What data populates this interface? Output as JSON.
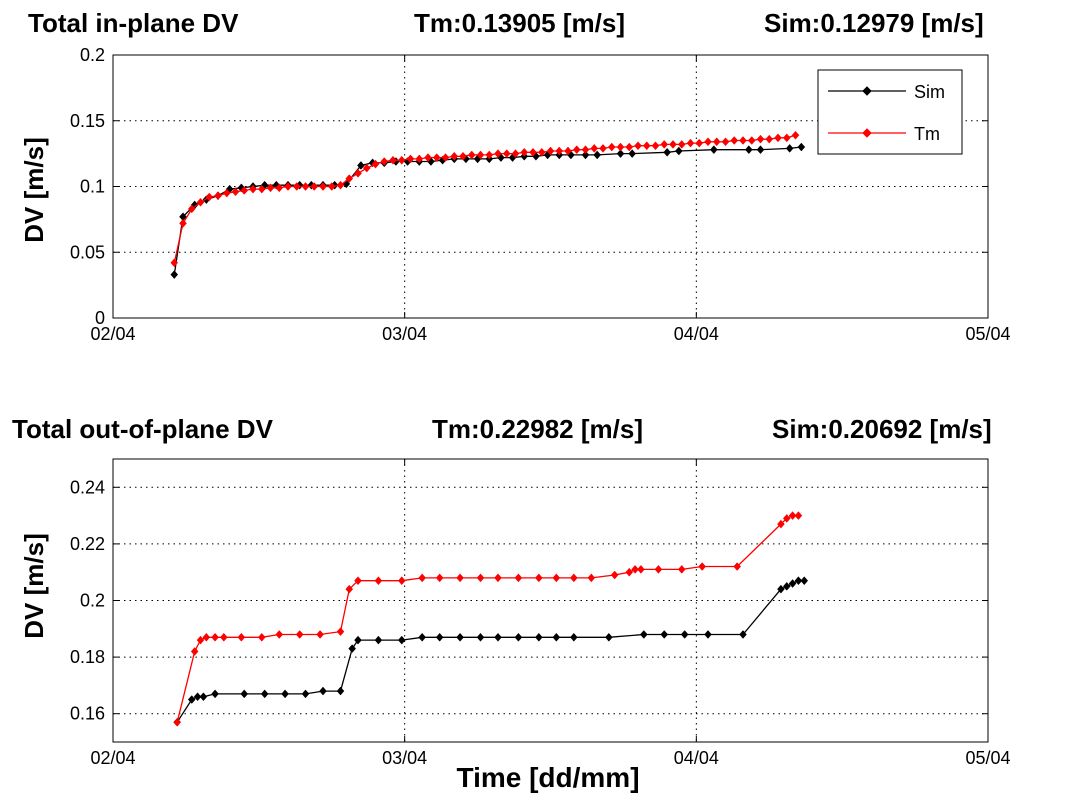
{
  "colors": {
    "sim": "#000000",
    "tm": "#ff0000",
    "background": "#ffffff",
    "grid": "#000000"
  },
  "chart_data": [
    {
      "type": "line",
      "title_parts": [
        "Total in-plane DV",
        "Tm:0.13905 [m/s]",
        "Sim:0.12979 [m/s]"
      ],
      "xlabel": "",
      "ylabel": "DV [m/s]",
      "xlim": [
        2.0,
        5.0
      ],
      "ylim": [
        0,
        0.2
      ],
      "xticks": [
        2,
        3,
        4,
        5
      ],
      "xtick_labels": [
        "02/04",
        "03/04",
        "04/04",
        "05/04"
      ],
      "yticks": [
        0,
        0.05,
        0.1,
        0.15,
        0.2
      ],
      "ytick_labels": [
        "0",
        "0.05",
        "0.1",
        "0.15",
        "0.2"
      ],
      "grid": true,
      "legend": {
        "position": "top-right",
        "entries": [
          "Sim",
          "Tm"
        ]
      },
      "series": [
        {
          "name": "Sim",
          "color": "#000000",
          "x": [
            2.21,
            2.24,
            2.28,
            2.32,
            2.36,
            2.4,
            2.44,
            2.48,
            2.52,
            2.56,
            2.6,
            2.64,
            2.68,
            2.72,
            2.76,
            2.8,
            2.85,
            2.89,
            2.93,
            2.97,
            3.01,
            3.05,
            3.09,
            3.13,
            3.17,
            3.21,
            3.25,
            3.29,
            3.33,
            3.37,
            3.41,
            3.45,
            3.49,
            3.53,
            3.57,
            3.62,
            3.66,
            3.74,
            3.78,
            3.9,
            3.94,
            4.06,
            4.18,
            4.22,
            4.32,
            4.36
          ],
          "y": [
            0.033,
            0.077,
            0.086,
            0.09,
            0.093,
            0.098,
            0.099,
            0.1,
            0.101,
            0.101,
            0.101,
            0.101,
            0.101,
            0.101,
            0.101,
            0.102,
            0.116,
            0.118,
            0.118,
            0.119,
            0.119,
            0.119,
            0.119,
            0.12,
            0.121,
            0.121,
            0.121,
            0.121,
            0.122,
            0.122,
            0.123,
            0.123,
            0.124,
            0.124,
            0.124,
            0.124,
            0.124,
            0.125,
            0.125,
            0.126,
            0.127,
            0.128,
            0.128,
            0.128,
            0.129,
            0.13
          ]
        },
        {
          "name": "Tm",
          "color": "#ff0000",
          "x": [
            2.21,
            2.24,
            2.27,
            2.3,
            2.33,
            2.36,
            2.39,
            2.42,
            2.45,
            2.48,
            2.51,
            2.54,
            2.57,
            2.6,
            2.63,
            2.66,
            2.69,
            2.72,
            2.75,
            2.78,
            2.81,
            2.84,
            2.87,
            2.9,
            2.93,
            2.96,
            2.99,
            3.02,
            3.05,
            3.08,
            3.11,
            3.14,
            3.17,
            3.2,
            3.23,
            3.26,
            3.29,
            3.32,
            3.35,
            3.38,
            3.41,
            3.44,
            3.47,
            3.5,
            3.53,
            3.56,
            3.59,
            3.62,
            3.65,
            3.68,
            3.71,
            3.74,
            3.77,
            3.8,
            3.83,
            3.86,
            3.89,
            3.92,
            3.95,
            3.98,
            4.01,
            4.04,
            4.07,
            4.1,
            4.13,
            4.16,
            4.19,
            4.22,
            4.25,
            4.28,
            4.31,
            4.34
          ],
          "y": [
            0.042,
            0.072,
            0.083,
            0.088,
            0.092,
            0.093,
            0.095,
            0.096,
            0.097,
            0.098,
            0.098,
            0.099,
            0.099,
            0.1,
            0.1,
            0.1,
            0.1,
            0.1,
            0.1,
            0.101,
            0.106,
            0.11,
            0.114,
            0.117,
            0.119,
            0.12,
            0.12,
            0.121,
            0.121,
            0.122,
            0.122,
            0.122,
            0.123,
            0.123,
            0.124,
            0.124,
            0.124,
            0.125,
            0.125,
            0.125,
            0.126,
            0.126,
            0.126,
            0.127,
            0.127,
            0.127,
            0.128,
            0.128,
            0.129,
            0.129,
            0.13,
            0.13,
            0.13,
            0.131,
            0.131,
            0.131,
            0.132,
            0.132,
            0.132,
            0.133,
            0.133,
            0.134,
            0.134,
            0.134,
            0.135,
            0.135,
            0.135,
            0.136,
            0.136,
            0.137,
            0.137,
            0.139
          ]
        }
      ]
    },
    {
      "type": "line",
      "title_parts": [
        "Total out-of-plane DV",
        "Tm:0.22982 [m/s]",
        "Sim:0.20692 [m/s]"
      ],
      "xlabel": "Time [dd/mm]",
      "ylabel": "DV [m/s]",
      "xlim": [
        2.0,
        5.0
      ],
      "ylim": [
        0.15,
        0.25
      ],
      "xticks": [
        2,
        3,
        4,
        5
      ],
      "xtick_labels": [
        "02/04",
        "03/04",
        "04/04",
        "05/04"
      ],
      "yticks": [
        0.16,
        0.18,
        0.2,
        0.22,
        0.24
      ],
      "ytick_labels": [
        "0.16",
        "0.18",
        "0.2",
        "0.22",
        "0.24"
      ],
      "grid": true,
      "series": [
        {
          "name": "Sim",
          "color": "#000000",
          "x": [
            2.22,
            2.27,
            2.29,
            2.31,
            2.35,
            2.45,
            2.52,
            2.59,
            2.66,
            2.72,
            2.78,
            2.82,
            2.84,
            2.91,
            2.99,
            3.06,
            3.12,
            3.19,
            3.26,
            3.32,
            3.39,
            3.46,
            3.52,
            3.58,
            3.7,
            3.82,
            3.89,
            3.96,
            4.04,
            4.16,
            4.29,
            4.31,
            4.33,
            4.35,
            4.37
          ],
          "y": [
            0.157,
            0.165,
            0.166,
            0.166,
            0.167,
            0.167,
            0.167,
            0.167,
            0.167,
            0.168,
            0.168,
            0.183,
            0.186,
            0.186,
            0.186,
            0.187,
            0.187,
            0.187,
            0.187,
            0.187,
            0.187,
            0.187,
            0.187,
            0.187,
            0.187,
            0.188,
            0.188,
            0.188,
            0.188,
            0.188,
            0.204,
            0.205,
            0.206,
            0.207,
            0.207
          ]
        },
        {
          "name": "Tm",
          "color": "#ff0000",
          "x": [
            2.22,
            2.28,
            2.3,
            2.32,
            2.35,
            2.38,
            2.44,
            2.51,
            2.57,
            2.64,
            2.71,
            2.78,
            2.81,
            2.84,
            2.91,
            2.99,
            3.06,
            3.12,
            3.19,
            3.26,
            3.32,
            3.39,
            3.46,
            3.52,
            3.58,
            3.64,
            3.72,
            3.77,
            3.79,
            3.81,
            3.87,
            3.95,
            4.02,
            4.14,
            4.29,
            4.31,
            4.33,
            4.35
          ],
          "y": [
            0.157,
            0.182,
            0.186,
            0.187,
            0.187,
            0.187,
            0.187,
            0.187,
            0.188,
            0.188,
            0.188,
            0.189,
            0.204,
            0.207,
            0.207,
            0.207,
            0.208,
            0.208,
            0.208,
            0.208,
            0.208,
            0.208,
            0.208,
            0.208,
            0.208,
            0.208,
            0.209,
            0.21,
            0.211,
            0.211,
            0.211,
            0.211,
            0.212,
            0.212,
            0.227,
            0.229,
            0.23,
            0.23
          ]
        }
      ]
    }
  ]
}
